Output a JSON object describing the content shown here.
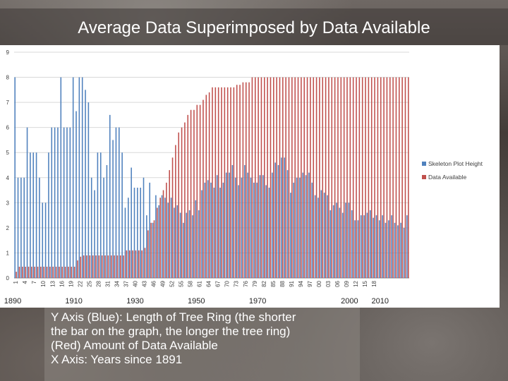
{
  "slide": {
    "title": "Average Data Superimposed by Data Available",
    "caption_lines": [
      "Y Axis (Blue): Length of Tree Ring (the shorter",
      "the bar on the graph, the longer the tree ring)",
      "(Red) Amount of Data Available",
      "X Axis: Years since 1891"
    ]
  },
  "chart_data": {
    "type": "bar",
    "ylim": [
      0,
      9
    ],
    "yticks": [
      0,
      1,
      2,
      3,
      4,
      5,
      6,
      7,
      8,
      9
    ],
    "grid": true,
    "legend_position": "right",
    "colors": {
      "series_1": "#4f81bd",
      "series_2": "#c0504d"
    },
    "tick_labels": [
      "1",
      "4",
      "7",
      "10",
      "13",
      "16",
      "19",
      "22",
      "25",
      "28",
      "31",
      "34",
      "37",
      "40",
      "43",
      "46",
      "49",
      "52",
      "55",
      "58",
      "61",
      "64",
      "67",
      "70",
      "73",
      "76",
      "79",
      "82",
      "85",
      "88",
      "91",
      "94",
      "97",
      "00",
      "03",
      "06",
      "09",
      "12",
      "15",
      "18"
    ],
    "decade_labels": [
      {
        "label": "1890",
        "year": 1890
      },
      {
        "label": "1910",
        "year": 1910
      },
      {
        "label": "1930",
        "year": 1930
      },
      {
        "label": "1950",
        "year": 1950
      },
      {
        "label": "1970",
        "year": 1970
      },
      {
        "label": "2000",
        "year": 2000
      },
      {
        "label": "2010",
        "year": 2010
      }
    ],
    "x": [
      1891,
      1892,
      1893,
      1894,
      1895,
      1896,
      1897,
      1898,
      1899,
      1900,
      1901,
      1902,
      1903,
      1904,
      1905,
      1906,
      1907,
      1908,
      1909,
      1910,
      1911,
      1912,
      1913,
      1914,
      1915,
      1916,
      1917,
      1918,
      1919,
      1920,
      1921,
      1922,
      1923,
      1924,
      1925,
      1926,
      1927,
      1928,
      1929,
      1930,
      1931,
      1932,
      1933,
      1934,
      1935,
      1936,
      1937,
      1938,
      1939,
      1940,
      1941,
      1942,
      1943,
      1944,
      1945,
      1946,
      1947,
      1948,
      1949,
      1950,
      1951,
      1952,
      1953,
      1954,
      1955,
      1956,
      1957,
      1958,
      1959,
      1960,
      1961,
      1962,
      1963,
      1964,
      1965,
      1966,
      1967,
      1968,
      1969,
      1970,
      1971,
      1972,
      1973,
      1974,
      1975,
      1976,
      1977,
      1978,
      1979,
      1980,
      1981,
      1982,
      1983,
      1984,
      1985,
      1986,
      1987,
      1988,
      1989,
      1990,
      1991,
      1992,
      1993,
      1994,
      1995,
      1996,
      1997,
      1998,
      1999,
      2000,
      2001,
      2002,
      2003,
      2004,
      2005,
      2006,
      2007,
      2008,
      2009,
      2010,
      2011,
      2012,
      2013,
      2014,
      2015,
      2016,
      2017,
      2018,
      2019
    ],
    "series": [
      {
        "name": "Skeleton Plot Height",
        "values": [
          8,
          4,
          4,
          4,
          6,
          5,
          5,
          5,
          4,
          3,
          3,
          5,
          6,
          6,
          6,
          8,
          6,
          6,
          6,
          8,
          6.65,
          8,
          8,
          7.5,
          7,
          4,
          3.5,
          5,
          5,
          4,
          4.5,
          6.5,
          5.5,
          6,
          6,
          5,
          2.8,
          3.2,
          4.4,
          3.6,
          3.6,
          3.6,
          4,
          2.5,
          3.8,
          2.2,
          3.3,
          2.9,
          3.3,
          3.2,
          3,
          3.2,
          2.8,
          2.9,
          2.6,
          2.2,
          2.6,
          2.7,
          2.5,
          3.1,
          2.7,
          3.5,
          3.8,
          3.9,
          3.8,
          3.6,
          4.1,
          3.6,
          3.8,
          4.2,
          4.2,
          4.5,
          4.0,
          3.7,
          4.0,
          4.5,
          4.2,
          4.0,
          3.8,
          3.8,
          4.1,
          4.1,
          3.7,
          3.6,
          4.2,
          4.6,
          4.5,
          4.8,
          4.8,
          4.3,
          3.4,
          3.8,
          4.0,
          4.0,
          4.2,
          4.1,
          4.2,
          3.8,
          3.3,
          3.2,
          3.5,
          3.4,
          3.3,
          2.7,
          2.9,
          3.0,
          2.8,
          2.6,
          3.0,
          3.0,
          2.7,
          2.3,
          2.3,
          2.5,
          2.5,
          2.6,
          2.7,
          2.4,
          2.5,
          2.3,
          2.5,
          2.2,
          2.3,
          2.5,
          2.2,
          2.1,
          2.2,
          2.0,
          2.5
        ],
        "color": "#4f81bd"
      },
      {
        "name": "Data Available",
        "values": [
          0.25,
          0.45,
          0.45,
          0.45,
          0.45,
          0.45,
          0.45,
          0.45,
          0.45,
          0.45,
          0.45,
          0.45,
          0.45,
          0.45,
          0.45,
          0.45,
          0.45,
          0.45,
          0.45,
          0.45,
          0.7,
          0.85,
          0.9,
          0.9,
          0.9,
          0.9,
          0.9,
          0.9,
          0.9,
          0.9,
          0.9,
          0.9,
          0.9,
          0.9,
          0.9,
          0.9,
          1.1,
          1.1,
          1.1,
          1.1,
          1.1,
          1.1,
          1.2,
          1.9,
          2.2,
          2.3,
          2.8,
          3.2,
          3.5,
          3.8,
          4.3,
          4.8,
          5.3,
          5.8,
          6.0,
          6.2,
          6.5,
          6.7,
          6.7,
          6.9,
          6.9,
          7.1,
          7.3,
          7.4,
          7.6,
          7.6,
          7.6,
          7.6,
          7.6,
          7.6,
          7.6,
          7.6,
          7.7,
          7.7,
          7.8,
          7.8,
          7.8,
          8,
          8,
          8,
          8,
          8,
          8,
          8,
          8,
          8,
          8,
          8,
          8,
          8,
          8,
          8,
          8,
          8,
          8,
          8,
          8,
          8,
          8,
          8,
          8,
          8,
          8,
          8,
          8,
          8,
          8,
          8,
          8,
          8,
          8,
          8,
          8,
          8,
          8,
          8,
          8,
          8,
          8,
          8,
          8,
          8,
          8,
          8,
          8,
          8,
          8,
          8,
          8
        ],
        "color": "#c0504d"
      }
    ]
  }
}
